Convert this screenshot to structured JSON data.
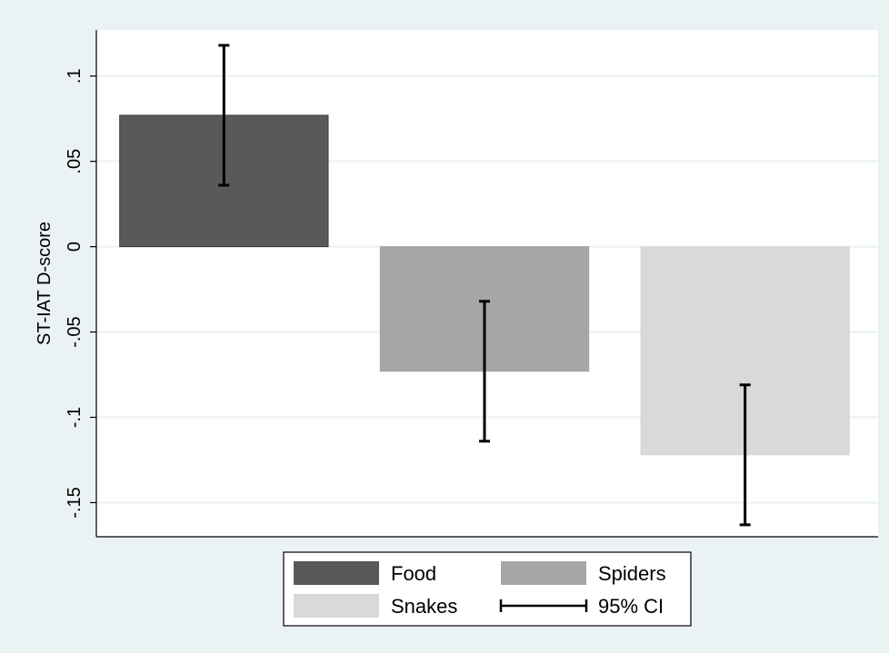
{
  "chart_data": {
    "type": "bar",
    "title": "",
    "xlabel": "",
    "ylabel": "ST-IAT D-score",
    "ylim": [
      -0.17,
      0.127
    ],
    "yticks": [
      {
        "value": 0.1,
        "label": ".1"
      },
      {
        "value": 0.05,
        "label": ".05"
      },
      {
        "value": 0,
        "label": "0"
      },
      {
        "value": -0.05,
        "label": "-.05"
      },
      {
        "value": -0.1,
        "label": "-.1"
      },
      {
        "value": -0.15,
        "label": "-.15"
      }
    ],
    "grid": true,
    "legend_position": "bottom",
    "series": [
      {
        "name": "Food",
        "value": 0.077,
        "ci": [
          0.036,
          0.118
        ],
        "color": "#595959"
      },
      {
        "name": "Spiders",
        "value": -0.073,
        "ci": [
          -0.114,
          -0.032
        ],
        "color": "#a6a6a6"
      },
      {
        "name": "Snakes",
        "value": -0.122,
        "ci": [
          -0.163,
          -0.081
        ],
        "color": "#d9d9d9"
      }
    ],
    "ci_legend_label": "95% CI",
    "colors": {
      "outer_background": "#eaf2f3",
      "plot_background": "#ffffff",
      "grid": "#eaf2f3",
      "ci": "#000000"
    }
  }
}
